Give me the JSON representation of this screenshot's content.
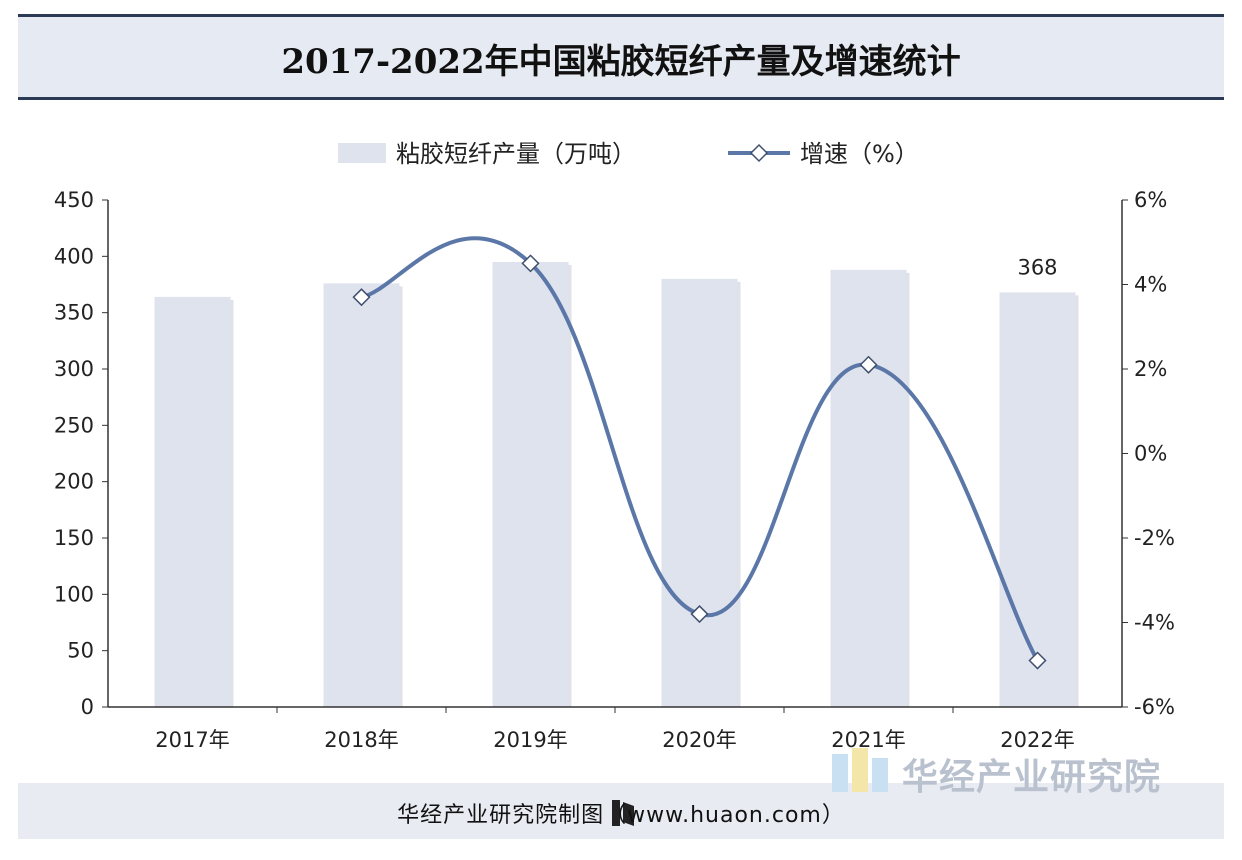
{
  "title": "2017-2022年中国粘胶短纤产量及增速统计",
  "footer": {
    "source_text": "华经产业研究院制图（www.huaon.com）"
  },
  "brand": {
    "name": "华经产业研究院"
  },
  "colors": {
    "bar": "#dfe3ed",
    "line": "#5b77a8",
    "marker_fill": "#ffffff",
    "title_rule": "#2b3a55"
  },
  "chart_data": {
    "type": "bar+line",
    "categories": [
      "2017年",
      "2018年",
      "2019年",
      "2020年",
      "2021年",
      "2022年"
    ],
    "series": [
      {
        "name": "粘胶短纤产量（万吨）",
        "type": "bar",
        "axis": "left",
        "values": [
          364,
          376,
          395,
          380,
          388,
          368
        ]
      },
      {
        "name": "增速（%）",
        "type": "line",
        "axis": "right",
        "smooth": true,
        "values": [
          null,
          3.7,
          4.5,
          -3.8,
          2.1,
          -4.9
        ]
      }
    ],
    "data_labels": [
      {
        "series": 0,
        "index": 5,
        "text": "368"
      }
    ],
    "y_left": {
      "min": 0,
      "max": 450,
      "step": 50,
      "ticks": [
        "0",
        "50",
        "100",
        "150",
        "200",
        "250",
        "300",
        "350",
        "400",
        "450"
      ]
    },
    "y_right": {
      "min": -6,
      "max": 6,
      "step": 2,
      "ticks": [
        "-6%",
        "-4%",
        "-2%",
        "0%",
        "2%",
        "4%",
        "6%"
      ]
    },
    "legend_position": "top-center",
    "grid": false
  }
}
